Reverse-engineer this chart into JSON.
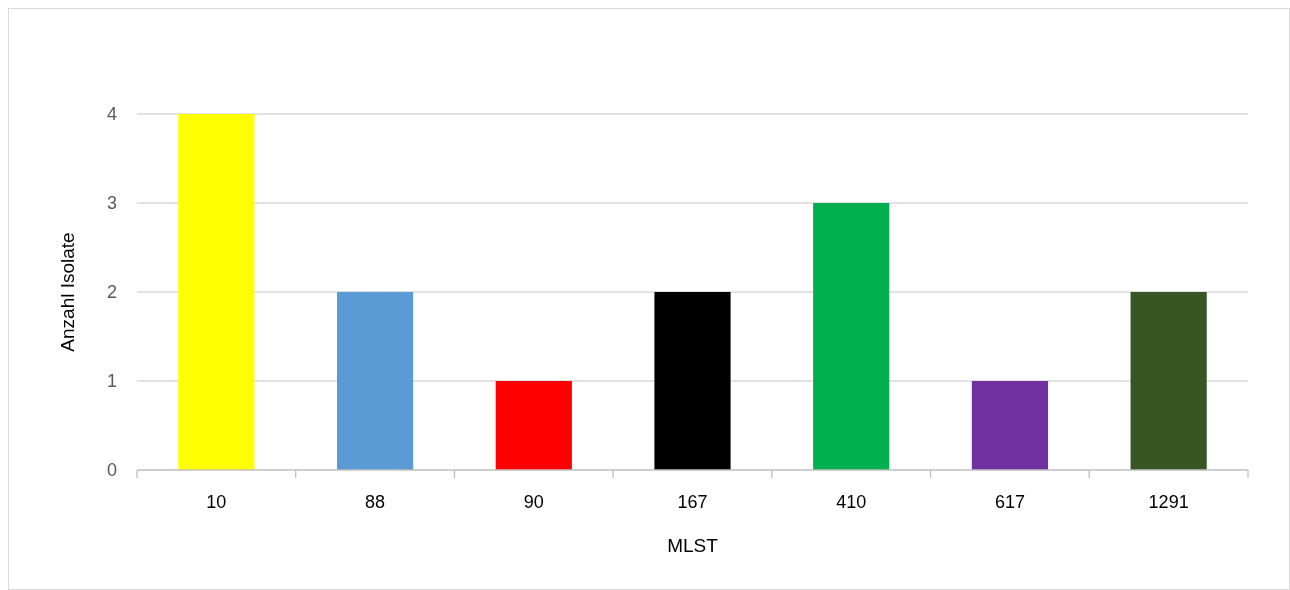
{
  "chart_data": {
    "type": "bar",
    "xlabel": "MLST",
    "ylabel": "Anzahl Isolate",
    "categories": [
      "10",
      "88",
      "90",
      "167",
      "410",
      "617",
      "1291"
    ],
    "values": [
      4,
      2,
      1,
      2,
      3,
      1,
      2
    ],
    "colors": [
      "#ffff00",
      "#5b9bd5",
      "#ff0000",
      "#000000",
      "#00b050",
      "#7030a0",
      "#375623"
    ],
    "ylim": [
      0,
      4
    ],
    "yticks": [
      0,
      1,
      2,
      3,
      4
    ],
    "grid": "y"
  }
}
